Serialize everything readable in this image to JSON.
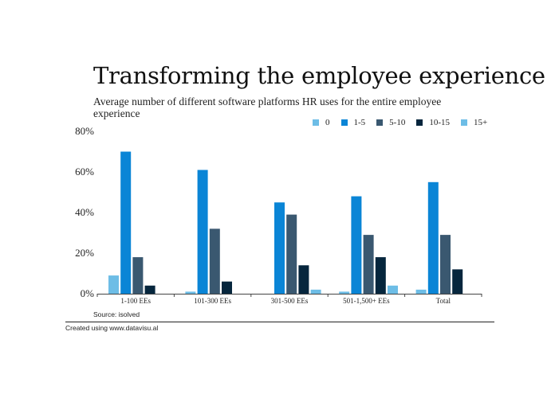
{
  "chart_data": {
    "type": "bar",
    "title": "Transforming the employee experience",
    "subtitle": "Average number of different software platforms HR uses for the entire employee experience",
    "categories": [
      "1-100 EEs",
      "101-300 EEs",
      "301-500 EEs",
      "501-1,500+ EEs",
      "Total"
    ],
    "series": [
      {
        "name": "0",
        "color": "#6dbde6",
        "values": [
          9,
          1,
          0,
          1,
          2
        ]
      },
      {
        "name": "1-5",
        "color": "#0a85d6",
        "values": [
          70,
          61,
          45,
          48,
          55
        ]
      },
      {
        "name": "5-10",
        "color": "#3a5870",
        "values": [
          18,
          32,
          39,
          29,
          29
        ]
      },
      {
        "name": "10-15",
        "color": "#06263d",
        "values": [
          4,
          6,
          14,
          18,
          12
        ]
      },
      {
        "name": "15+",
        "color": "#6dbde6",
        "values": [
          0,
          0,
          2,
          4,
          0
        ]
      }
    ],
    "yticks": [
      "0%",
      "20%",
      "40%",
      "60%",
      "80%"
    ],
    "ylim": [
      0,
      80
    ],
    "legend_position": "top-right",
    "grid": false,
    "source": "Source: isolved"
  },
  "footer": {
    "credit": "Created using www.datavisu.al"
  }
}
